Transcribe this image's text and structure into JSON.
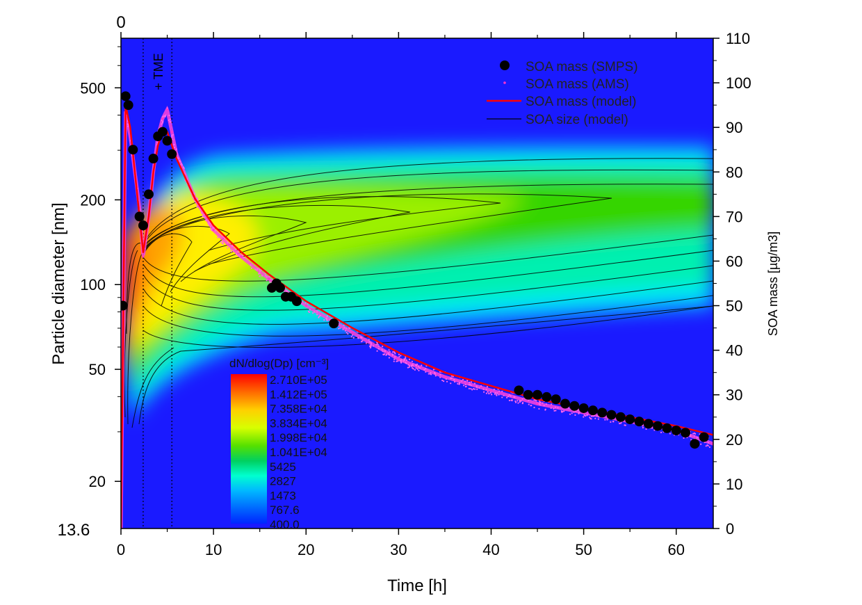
{
  "chart_data": {
    "type": "contour+line",
    "x": {
      "label": "Time [h]",
      "range": [
        0,
        64
      ],
      "ticks": [
        0,
        10,
        20,
        30,
        40,
        50,
        60
      ],
      "top_label": "0"
    },
    "y_left": {
      "label": "Particle diameter [nm]",
      "scale": "log",
      "range": [
        13.6,
        750
      ],
      "ticks": [
        20,
        50,
        100,
        200,
        500
      ],
      "bottom_label": "13.6"
    },
    "y_right": {
      "label": "SOA mass [µg/m3]",
      "range": [
        0,
        110
      ],
      "ticks": [
        0,
        10,
        20,
        30,
        40,
        50,
        60,
        70,
        80,
        90,
        100,
        110
      ]
    },
    "annotation": "+ TME",
    "markers": [
      {
        "x": 2.4,
        "style": "dotted"
      },
      {
        "x": 5.5,
        "style": "dotted"
      }
    ],
    "colorbar": {
      "title": "dN/dlog(Dp) [cm⁻³]",
      "labels": [
        "2.710E+05",
        "1.412E+05",
        "7.358E+04",
        "3.834E+04",
        "1.998E+04",
        "1.041E+04",
        "5425",
        "2827",
        "1473",
        "767.6",
        "400.0"
      ],
      "colors": [
        "#ff0000",
        "#ff7a00",
        "#ffee00",
        "#88ff00",
        "#00cc00",
        "#00ffcc",
        "#00aaff",
        "#0033ff"
      ]
    },
    "legend": [
      {
        "label": "SOA mass (SMPS)",
        "style": "marker-circle",
        "color": "#000000"
      },
      {
        "label": "SOA mass (AMS)",
        "style": "marker-dot",
        "color": "#ff33cc"
      },
      {
        "label": "SOA mass (model)",
        "style": "line",
        "color": "#ff0000"
      },
      {
        "label": "SOA size (model)",
        "style": "line",
        "color": "#000000"
      }
    ],
    "series": [
      {
        "name": "SOA mass (SMPS)",
        "x": [
          0.2,
          0.5,
          0.8,
          1.3,
          2.0,
          2.4,
          3.0,
          3.5,
          4.0,
          4.5,
          5.0,
          5.5,
          16.3,
          16.8,
          17.2,
          17.8,
          18.4,
          19.0,
          23.0,
          43.0,
          44.0,
          45.0,
          46.0,
          47.0,
          48.0,
          49.0,
          50.0,
          51.0,
          52.0,
          53.0,
          54.0,
          55.0,
          56.0,
          57.0,
          58.0,
          59.0,
          60.0,
          61.0,
          62.0,
          63.0
        ],
        "y": [
          50,
          97,
          95,
          85,
          70,
          68,
          75,
          83,
          88,
          89,
          87,
          84,
          54,
          55,
          54,
          52,
          52,
          51,
          46,
          31,
          30,
          30,
          29.5,
          29,
          28,
          27.5,
          27,
          26.5,
          26,
          25.5,
          25,
          24.5,
          24,
          23.5,
          23,
          22.5,
          22,
          21.5,
          19,
          20.5
        ]
      },
      {
        "name": "SOA mass (AMS)",
        "x": [
          0,
          0.5,
          1,
          1.5,
          2,
          2.4,
          3,
          3.5,
          4,
          4.5,
          5,
          5.5,
          6,
          8,
          10,
          13,
          16,
          20,
          25,
          30,
          35,
          40,
          45,
          50,
          55,
          60,
          64
        ],
        "y": [
          0,
          94,
          88,
          80,
          72,
          61,
          70,
          80,
          88,
          92,
          94,
          89,
          84,
          74,
          67,
          61,
          56,
          50,
          44,
          38,
          34,
          31,
          28,
          26,
          24,
          22,
          19
        ]
      },
      {
        "name": "SOA mass (model)",
        "x": [
          0,
          0.5,
          1,
          1.5,
          2,
          2.4,
          3,
          3.5,
          4,
          4.5,
          5,
          5.5,
          6,
          8,
          10,
          13,
          16,
          20,
          25,
          30,
          35,
          40,
          45,
          50,
          55,
          60,
          64
        ],
        "y": [
          0,
          95,
          90,
          80,
          70,
          62,
          70,
          80,
          86,
          89,
          89,
          86,
          83,
          74,
          68,
          62,
          57,
          51,
          45,
          39.5,
          35,
          32,
          29,
          27,
          25,
          23,
          21
        ]
      }
    ]
  }
}
